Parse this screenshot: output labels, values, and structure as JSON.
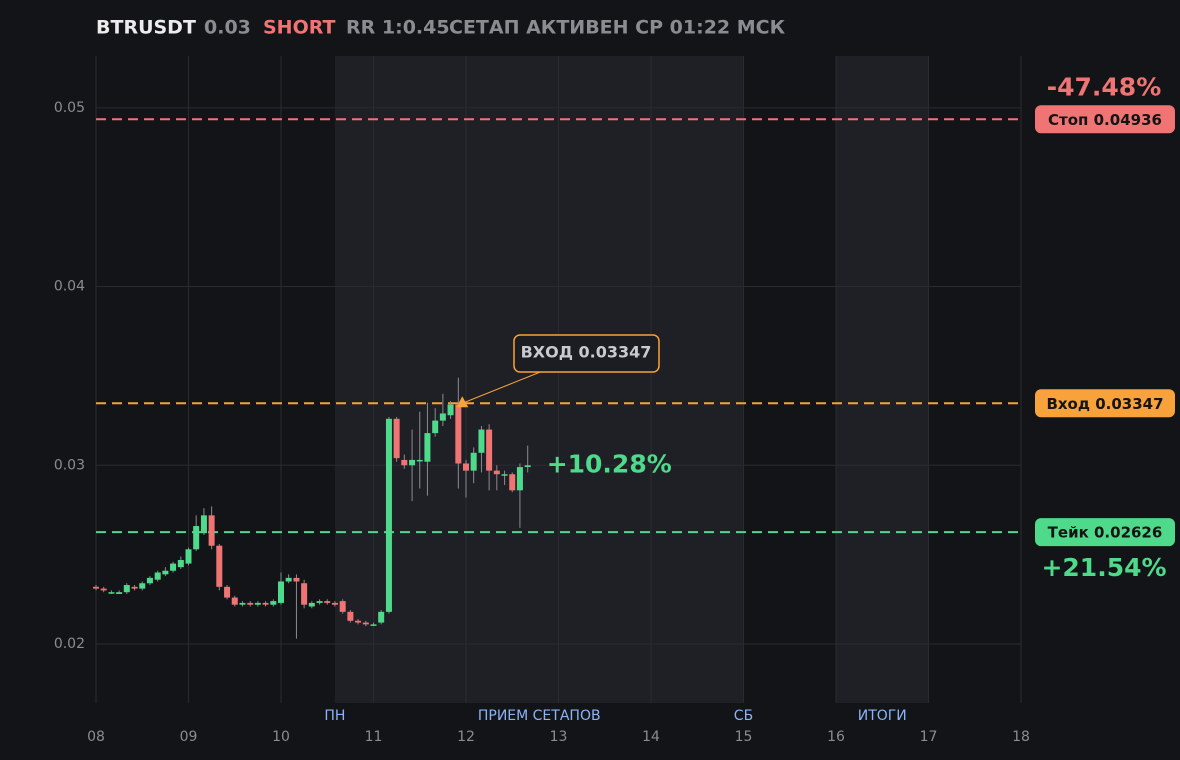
{
  "header": {
    "symbol": "BTRUSDT",
    "price": 0.03,
    "side": "SHORT",
    "rr": "RR 1:0.45",
    "status": "СЕТАП АКТИВЕН СР 01:22 МСК"
  },
  "chart_data": {
    "type": "candlestick",
    "x": [
      8,
      8.083,
      8.167,
      8.25,
      8.333,
      8.417,
      8.5,
      8.583,
      8.667,
      8.75,
      8.833,
      8.917,
      9,
      9.083,
      9.167,
      9.25,
      9.333,
      9.417,
      9.5,
      9.583,
      9.667,
      9.75,
      9.833,
      9.917,
      10,
      10.083,
      10.167,
      10.25,
      10.333,
      10.417,
      10.5,
      10.583,
      10.667,
      10.75,
      10.833,
      10.917,
      11,
      11.083,
      11.167,
      11.25,
      11.333,
      11.417,
      11.5,
      11.583,
      11.667,
      11.75,
      11.833,
      11.917,
      12,
      12.083,
      12.167,
      12.25,
      12.333,
      12.417,
      12.5,
      12.583,
      12.667
    ],
    "open": [
      0.0232,
      0.0231,
      0.0229,
      0.0228,
      0.0229,
      0.0232,
      0.0231,
      0.0234,
      0.0236,
      0.0239,
      0.0241,
      0.0243,
      0.0245,
      0.0253,
      0.0262,
      0.0272,
      0.0255,
      0.0232,
      0.0226,
      0.0222,
      0.0223,
      0.0222,
      0.0223,
      0.0222,
      0.0223,
      0.0235,
      0.0237,
      0.0234,
      0.0221,
      0.0223,
      0.0224,
      0.0223,
      0.0224,
      0.0218,
      0.0213,
      0.0212,
      0.0211,
      0.0212,
      0.0218,
      0.0326,
      0.0303,
      0.03,
      0.0303,
      0.0302,
      0.0318,
      0.0325,
      0.0328,
      0.0334,
      0.0301,
      0.0297,
      0.0307,
      0.032,
      0.0297,
      0.0295,
      0.0295,
      0.0286,
      0.0299
    ],
    "high": [
      0.0233,
      0.0232,
      0.023,
      0.023,
      0.0234,
      0.0233,
      0.0235,
      0.0238,
      0.0241,
      0.0243,
      0.0246,
      0.0249,
      0.0254,
      0.0272,
      0.0276,
      0.0277,
      0.0256,
      0.0233,
      0.0227,
      0.0224,
      0.0224,
      0.0224,
      0.0224,
      0.0225,
      0.024,
      0.0239,
      0.0239,
      0.0236,
      0.0224,
      0.0225,
      0.0225,
      0.0224,
      0.0225,
      0.0219,
      0.0214,
      0.0213,
      0.0212,
      0.0219,
      0.0327,
      0.0327,
      0.0306,
      0.032,
      0.033,
      0.0335,
      0.0332,
      0.034,
      0.0336,
      0.0349,
      0.0303,
      0.031,
      0.0322,
      0.0323,
      0.03,
      0.0297,
      0.0296,
      0.0301,
      0.0311
    ],
    "low": [
      0.023,
      0.0229,
      0.0228,
      0.0228,
      0.0228,
      0.023,
      0.023,
      0.0233,
      0.0235,
      0.0238,
      0.024,
      0.0242,
      0.0244,
      0.0252,
      0.0261,
      0.0253,
      0.023,
      0.0225,
      0.0221,
      0.0221,
      0.0221,
      0.0221,
      0.0221,
      0.0221,
      0.0222,
      0.0234,
      0.0203,
      0.022,
      0.022,
      0.0222,
      0.0222,
      0.0221,
      0.0217,
      0.0212,
      0.0211,
      0.021,
      0.021,
      0.0211,
      0.0217,
      0.0302,
      0.0298,
      0.028,
      0.0287,
      0.0283,
      0.0316,
      0.0322,
      0.0326,
      0.0287,
      0.0282,
      0.029,
      0.0296,
      0.0286,
      0.0286,
      0.0289,
      0.0285,
      0.0265,
      0.0296
    ],
    "close": [
      0.0231,
      0.023,
      0.0229,
      0.0229,
      0.0233,
      0.0231,
      0.0234,
      0.0237,
      0.024,
      0.0241,
      0.0245,
      0.0247,
      0.0253,
      0.0266,
      0.0272,
      0.0255,
      0.0232,
      0.0226,
      0.0222,
      0.0223,
      0.0222,
      0.0223,
      0.0222,
      0.0224,
      0.0235,
      0.0237,
      0.0235,
      0.0222,
      0.0223,
      0.0224,
      0.0223,
      0.0222,
      0.0218,
      0.0213,
      0.0212,
      0.0211,
      0.0211,
      0.0218,
      0.0326,
      0.0304,
      0.03,
      0.0303,
      0.0303,
      0.0318,
      0.0325,
      0.0329,
      0.0334,
      0.0301,
      0.0297,
      0.0307,
      0.032,
      0.0297,
      0.0295,
      0.0295,
      0.0286,
      0.0299,
      0.03
    ],
    "up_color": "#4fd98b",
    "down_color": "#f07474",
    "xlim": [
      8,
      18
    ],
    "xticks": [
      {
        "value": 8,
        "label": "08"
      },
      {
        "value": 9,
        "label": "09"
      },
      {
        "value": 10,
        "label": "10"
      },
      {
        "value": 11,
        "label": "11"
      },
      {
        "value": 12,
        "label": "12"
      },
      {
        "value": 13,
        "label": "13"
      },
      {
        "value": 14,
        "label": "14"
      },
      {
        "value": 15,
        "label": "15"
      },
      {
        "value": 16,
        "label": "16"
      },
      {
        "value": 17,
        "label": "17"
      },
      {
        "value": 18,
        "label": "18"
      }
    ],
    "ylim": [
      0.0167,
      0.0529
    ],
    "yticks": [
      0.02,
      0.03,
      0.04,
      0.05
    ],
    "grid": true,
    "bands": [
      {
        "label": "ПРИЕМ СЕТАПОВ",
        "start": 10.583,
        "end": 15
      },
      {
        "label": "ИТОГИ",
        "start": 16,
        "end": 17
      }
    ],
    "markers": [
      {
        "label": "ПН",
        "x": 10.583
      },
      {
        "label": "СБ",
        "x": 15
      }
    ],
    "levels": [
      {
        "value": 0.04936,
        "label": "Стоп 0.04936",
        "color": "#f07474",
        "change": -47.48,
        "change_label": "-47.48%"
      },
      {
        "value": 0.03347,
        "label": "Вход 0.03347",
        "color": "#f7a23a"
      },
      {
        "value": 0.02626,
        "label": "Тейк 0.02626",
        "color": "#4fd98b",
        "change": 21.54,
        "change_label": "+21.54%"
      }
    ],
    "current_change": 10.28,
    "current_change_label": "+10.28%",
    "annotation": {
      "text": "ВХОД 0.03347",
      "x": 11.96,
      "y": 0.03347
    }
  }
}
